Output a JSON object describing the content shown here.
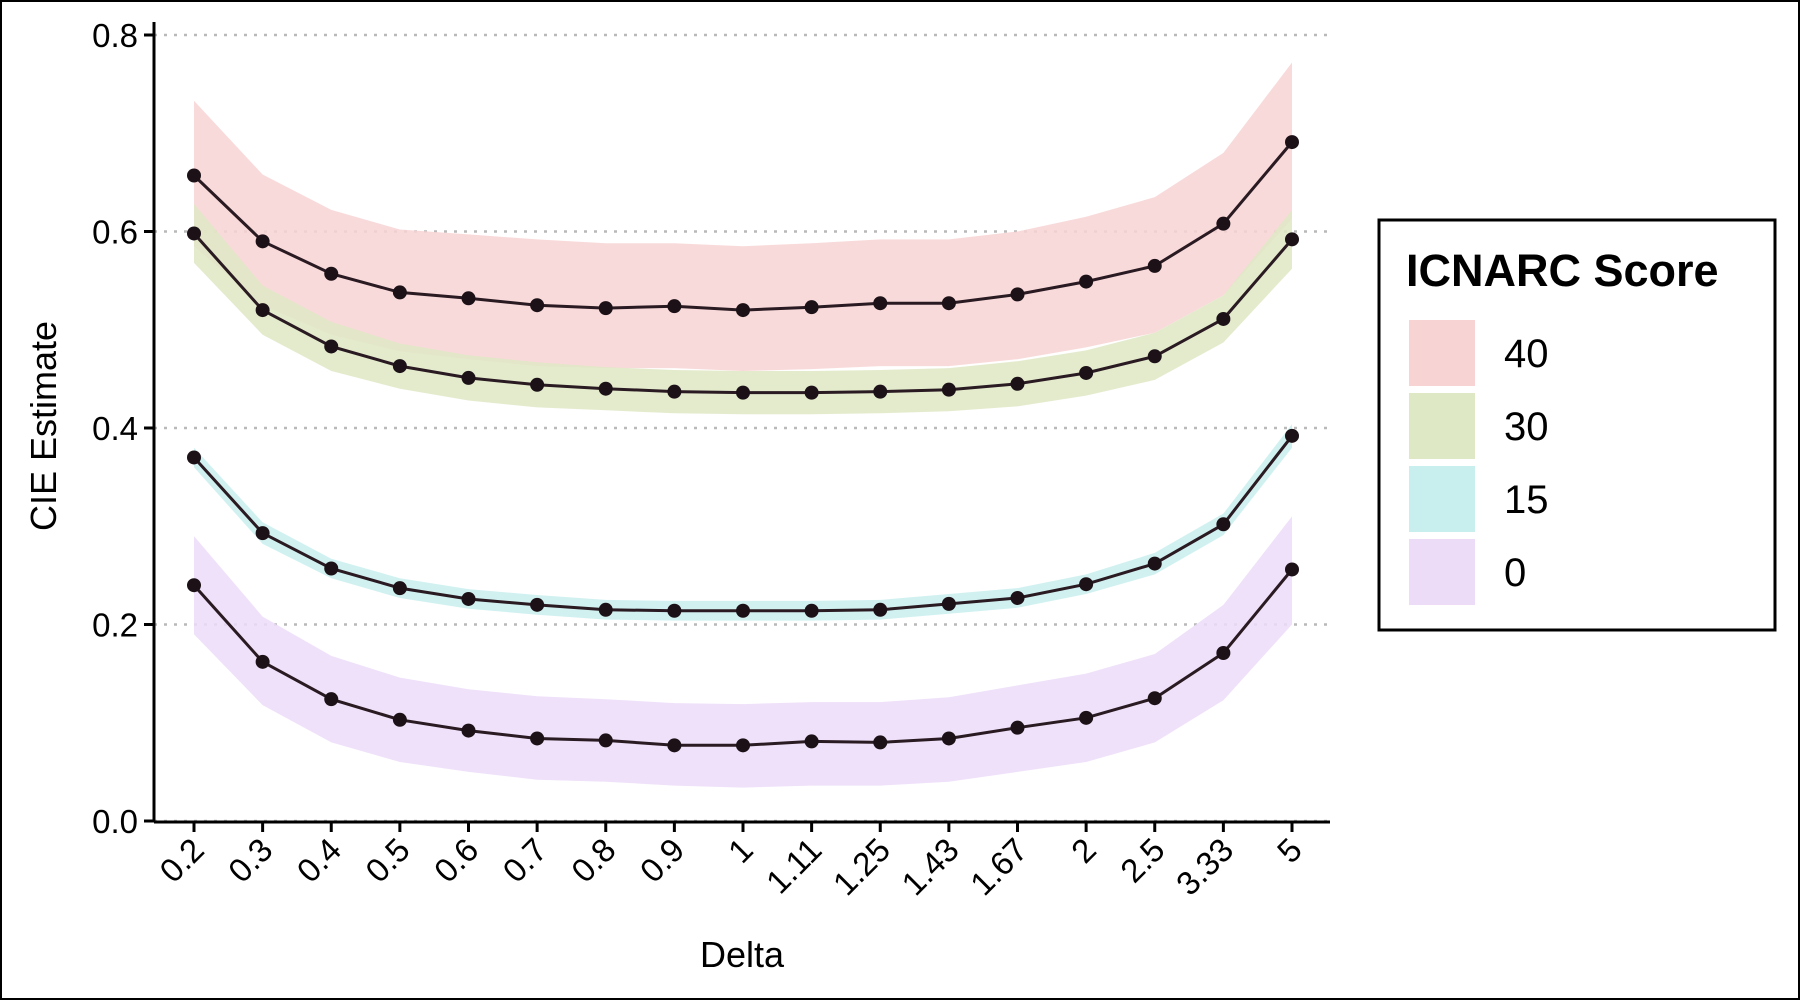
{
  "chart_data": {
    "type": "line",
    "title": "",
    "xlabel": "Delta",
    "ylabel": "CIE Estimate",
    "categories": [
      "0.2",
      "0.3",
      "0.4",
      "0.5",
      "0.6",
      "0.7",
      "0.8",
      "0.9",
      "1",
      "1.11",
      "1.25",
      "1.43",
      "1.67",
      "2",
      "2.5",
      "3.33",
      "5"
    ],
    "ylim": [
      0,
      0.8
    ],
    "yticks": [
      "0.0",
      "0.2",
      "0.4",
      "0.6",
      "0.8"
    ],
    "ytick_values": [
      0,
      0.2,
      0.4,
      0.6,
      0.8
    ],
    "grid": "horizontal dotted",
    "legend": {
      "title": "ICNARC Score",
      "placement": "right"
    },
    "series": [
      {
        "name": "40",
        "color": "#f8d3d3",
        "values": [
          0.657,
          0.59,
          0.557,
          0.538,
          0.532,
          0.525,
          0.522,
          0.524,
          0.52,
          0.523,
          0.527,
          0.527,
          0.536,
          0.549,
          0.565,
          0.608,
          0.691
        ],
        "lower": [
          0.585,
          0.525,
          0.495,
          0.478,
          0.47,
          0.463,
          0.461,
          0.461,
          0.458,
          0.46,
          0.463,
          0.463,
          0.47,
          0.482,
          0.497,
          0.535,
          0.613
        ],
        "upper": [
          0.733,
          0.658,
          0.622,
          0.602,
          0.597,
          0.592,
          0.588,
          0.588,
          0.585,
          0.588,
          0.592,
          0.592,
          0.6,
          0.615,
          0.635,
          0.68,
          0.772
        ]
      },
      {
        "name": "30",
        "color": "#dfe8c4",
        "values": [
          0.598,
          0.52,
          0.483,
          0.463,
          0.451,
          0.444,
          0.44,
          0.437,
          0.436,
          0.436,
          0.437,
          0.439,
          0.445,
          0.456,
          0.473,
          0.511,
          0.592
        ],
        "lower": [
          0.568,
          0.495,
          0.458,
          0.44,
          0.428,
          0.421,
          0.418,
          0.415,
          0.414,
          0.414,
          0.415,
          0.417,
          0.422,
          0.433,
          0.449,
          0.487,
          0.562
        ],
        "upper": [
          0.628,
          0.545,
          0.508,
          0.486,
          0.474,
          0.467,
          0.462,
          0.459,
          0.458,
          0.458,
          0.459,
          0.461,
          0.468,
          0.479,
          0.497,
          0.535,
          0.622
        ]
      },
      {
        "name": "15",
        "color": "#c9eeee",
        "values": [
          0.37,
          0.293,
          0.257,
          0.237,
          0.226,
          0.22,
          0.215,
          0.214,
          0.214,
          0.214,
          0.215,
          0.221,
          0.227,
          0.241,
          0.262,
          0.302,
          0.392
        ],
        "lower": [
          0.36,
          0.282,
          0.247,
          0.227,
          0.216,
          0.21,
          0.205,
          0.204,
          0.204,
          0.204,
          0.205,
          0.211,
          0.217,
          0.231,
          0.251,
          0.291,
          0.38
        ],
        "upper": [
          0.38,
          0.304,
          0.267,
          0.247,
          0.236,
          0.23,
          0.225,
          0.224,
          0.224,
          0.224,
          0.225,
          0.231,
          0.237,
          0.251,
          0.273,
          0.313,
          0.404
        ]
      },
      {
        "name": "0",
        "color": "#ecdcf8",
        "values": [
          0.24,
          0.162,
          0.124,
          0.103,
          0.092,
          0.084,
          0.082,
          0.077,
          0.077,
          0.081,
          0.08,
          0.084,
          0.095,
          0.105,
          0.125,
          0.171,
          0.256
        ],
        "lower": [
          0.19,
          0.118,
          0.08,
          0.06,
          0.05,
          0.042,
          0.04,
          0.036,
          0.034,
          0.036,
          0.036,
          0.04,
          0.05,
          0.06,
          0.08,
          0.123,
          0.2
        ],
        "upper": [
          0.29,
          0.208,
          0.168,
          0.146,
          0.134,
          0.127,
          0.124,
          0.12,
          0.119,
          0.121,
          0.121,
          0.126,
          0.138,
          0.15,
          0.17,
          0.22,
          0.31
        ]
      }
    ]
  }
}
